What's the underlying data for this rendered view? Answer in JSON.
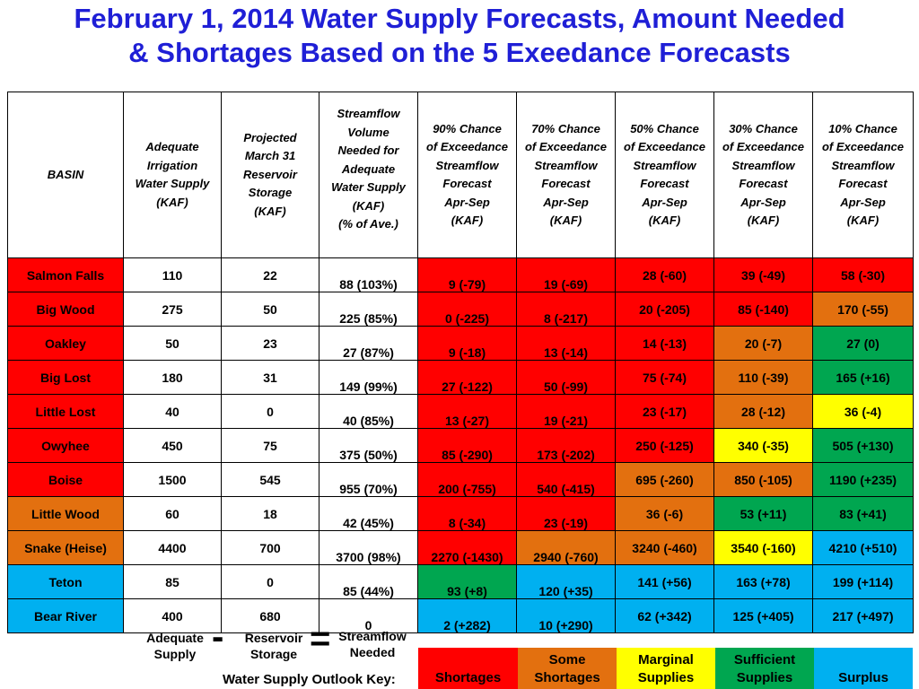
{
  "title_line1": "February 1, 2014  Water Supply Forecasts,  Amount Needed",
  "title_line2": "& Shortages Based on the 5 Exeedance Forecasts",
  "headers": [
    "BASIN",
    "Adequate Irrigation Water Supply (KAF)",
    "Projected March 31 Reservoir Storage (KAF)",
    "Streamflow Volume Needed for Adequate Water Supply (KAF) (% of Ave.)",
    "90% Chance of Exceedance Streamflow Forecast Apr-Sep (KAF)",
    "70% Chance of Exceedance Streamflow Forecast Apr-Sep (KAF)",
    "50% Chance of Exceedance Streamflow Forecast Apr-Sep (KAF)",
    "30% Chance of Exceedance Streamflow Forecast Apr-Sep (KAF)",
    "10% Chance of Exceedance Streamflow Forecast Apr-Sep (KAF)"
  ],
  "header_lines": [
    [
      "BASIN"
    ],
    [
      "Adequate",
      "Irrigation",
      "Water Supply",
      "(KAF)"
    ],
    [
      "Projected",
      "March 31",
      "Reservoir",
      "Storage",
      "(KAF)"
    ],
    [
      "Streamflow",
      "Volume",
      "Needed for",
      "Adequate",
      "Water Supply",
      "(KAF)",
      "(% of Ave.)"
    ],
    [
      "90% Chance",
      "of Exceedance",
      "Streamflow",
      "Forecast",
      "Apr-Sep",
      "(KAF)"
    ],
    [
      "70% Chance",
      "of Exceedance",
      "Streamflow",
      "Forecast",
      "Apr-Sep",
      "(KAF)"
    ],
    [
      "50% Chance",
      "of Exceedance",
      "Streamflow",
      "Forecast",
      "Apr-Sep",
      "(KAF)"
    ],
    [
      "30% Chance",
      "of Exceedance",
      "Streamflow",
      "Forecast",
      "Apr-Sep",
      "(KAF)"
    ],
    [
      "10% Chance",
      "of Exceedance",
      "Streamflow",
      "Forecast",
      "Apr-Sep",
      "(KAF)"
    ]
  ],
  "rows": [
    {
      "basin": "Salmon Falls",
      "basin_color": "red",
      "supply": "110",
      "storage": "22",
      "needed": "88 (103%)",
      "f90": "9 (-79)",
      "c90": "red",
      "f70": "19 (-69)",
      "c70": "red",
      "f50": "28 (-60)",
      "c50": "red",
      "f30": "39 (-49)",
      "c30": "red",
      "f10": "58 (-30)",
      "c10": "red"
    },
    {
      "basin": "Big Wood",
      "basin_color": "red",
      "supply": "275",
      "storage": "50",
      "needed": "225 (85%)",
      "f90": "0 (-225)",
      "c90": "red",
      "f70": "8 (-217)",
      "c70": "red",
      "f50": "20 (-205)",
      "c50": "red",
      "f30": "85 (-140)",
      "c30": "red",
      "f10": "170 (-55)",
      "c10": "orange"
    },
    {
      "basin": "Oakley",
      "basin_color": "red",
      "supply": "50",
      "storage": "23",
      "needed": "27 (87%)",
      "f90": "9 (-18)",
      "c90": "red",
      "f70": "13 (-14)",
      "c70": "red",
      "f50": "14 (-13)",
      "c50": "red",
      "f30": "20 (-7)",
      "c30": "orange",
      "f10": "27 (0)",
      "c10": "green"
    },
    {
      "basin": "Big Lost",
      "basin_color": "red",
      "supply": "180",
      "storage": "31",
      "needed": "149 (99%)",
      "f90": "27 (-122)",
      "c90": "red",
      "f70": "50 (-99)",
      "c70": "red",
      "f50": "75 (-74)",
      "c50": "red",
      "f30": "110 (-39)",
      "c30": "orange",
      "f10": "165 (+16)",
      "c10": "green"
    },
    {
      "basin": "Little Lost",
      "basin_color": "red",
      "supply": "40",
      "storage": "0",
      "needed": "40 (85%)",
      "f90": "13 (-27)",
      "c90": "red",
      "f70": "19 (-21)",
      "c70": "red",
      "f50": "23 (-17)",
      "c50": "red",
      "f30": "28 (-12)",
      "c30": "orange",
      "f10": "36 (-4)",
      "c10": "yellow"
    },
    {
      "basin": "Owyhee",
      "basin_color": "red",
      "supply": "450",
      "storage": "75",
      "needed": "375 (50%)",
      "f90": "85 (-290)",
      "c90": "red",
      "f70": "173 (-202)",
      "c70": "red",
      "f50": "250 (-125)",
      "c50": "red",
      "f30": "340 (-35)",
      "c30": "yellow",
      "f10": "505 (+130)",
      "c10": "green"
    },
    {
      "basin": "Boise",
      "basin_color": "red",
      "supply": "1500",
      "storage": "545",
      "needed": "955 (70%)",
      "f90": "200 (-755)",
      "c90": "red",
      "f70": "540 (-415)",
      "c70": "red",
      "f50": "695 (-260)",
      "c50": "orange",
      "f30": "850 (-105)",
      "c30": "orange",
      "f10": "1190 (+235)",
      "c10": "green"
    },
    {
      "basin": "Little Wood",
      "basin_color": "orange",
      "supply": "60",
      "storage": "18",
      "needed": "42 (45%)",
      "f90": "8 (-34)",
      "c90": "red",
      "f70": "23 (-19)",
      "c70": "red",
      "f50": "36 (-6)",
      "c50": "orange",
      "f30": "53 (+11)",
      "c30": "green",
      "f10": "83 (+41)",
      "c10": "green"
    },
    {
      "basin": "Snake (Heise)",
      "basin_color": "orange",
      "supply": "4400",
      "storage": "700",
      "needed": "3700 (98%)",
      "f90": "2270 (-1430)",
      "c90": "red",
      "f70": "2940 (-760)",
      "c70": "orange",
      "f50": "3240 (-460)",
      "c50": "orange",
      "f30": "3540 (-160)",
      "c30": "yellow",
      "f10": "4210 (+510)",
      "c10": "blue"
    },
    {
      "basin": "Teton",
      "basin_color": "blue",
      "supply": "85",
      "storage": "0",
      "needed": "85 (44%)",
      "f90": "93 (+8)",
      "c90": "green",
      "f70": "120 (+35)",
      "c70": "blue",
      "f50": "141 (+56)",
      "c50": "blue",
      "f30": "163 (+78)",
      "c30": "blue",
      "f10": "199 (+114)",
      "c10": "blue"
    },
    {
      "basin": "Bear River",
      "basin_color": "blue",
      "supply": "400",
      "storage": "680",
      "needed": "0",
      "f90": "2 (+282)",
      "c90": "blue",
      "f70": "10 (+290)",
      "c70": "blue",
      "f50": "62 (+342)",
      "c50": "blue",
      "f30": "125 (+405)",
      "c30": "blue",
      "f10": "217 (+497)",
      "c10": "blue"
    }
  ],
  "equation": {
    "term1": "Adequate Supply",
    "term1_lines": [
      "Adequate",
      "Supply"
    ],
    "minus": "-",
    "term2": "Reservoir Storage",
    "term2_lines": [
      "Reservoir",
      "Storage"
    ],
    "equals": "=",
    "term3": "Streamflow Needed",
    "term3_lines": [
      "Streamflow",
      "Needed"
    ]
  },
  "legend": {
    "label": "Water Supply Outlook Key:",
    "items": [
      {
        "lines": [
          "Shortages"
        ],
        "color": "#ff0000"
      },
      {
        "lines": [
          "Some",
          "Shortages"
        ],
        "color": "#e3700f"
      },
      {
        "lines": [
          "Marginal",
          "Supplies"
        ],
        "color": "#ffff00"
      },
      {
        "lines": [
          "Sufficient",
          "Supplies"
        ],
        "color": "#00a650"
      },
      {
        "lines": [
          "Surplus"
        ],
        "color": "#00b0f0"
      }
    ]
  },
  "colors": {
    "red": "#ff0000",
    "orange": "#e3700f",
    "yellow": "#ffff00",
    "green": "#00a650",
    "blue": "#00b0f0",
    "title": "#1f1fd6"
  }
}
